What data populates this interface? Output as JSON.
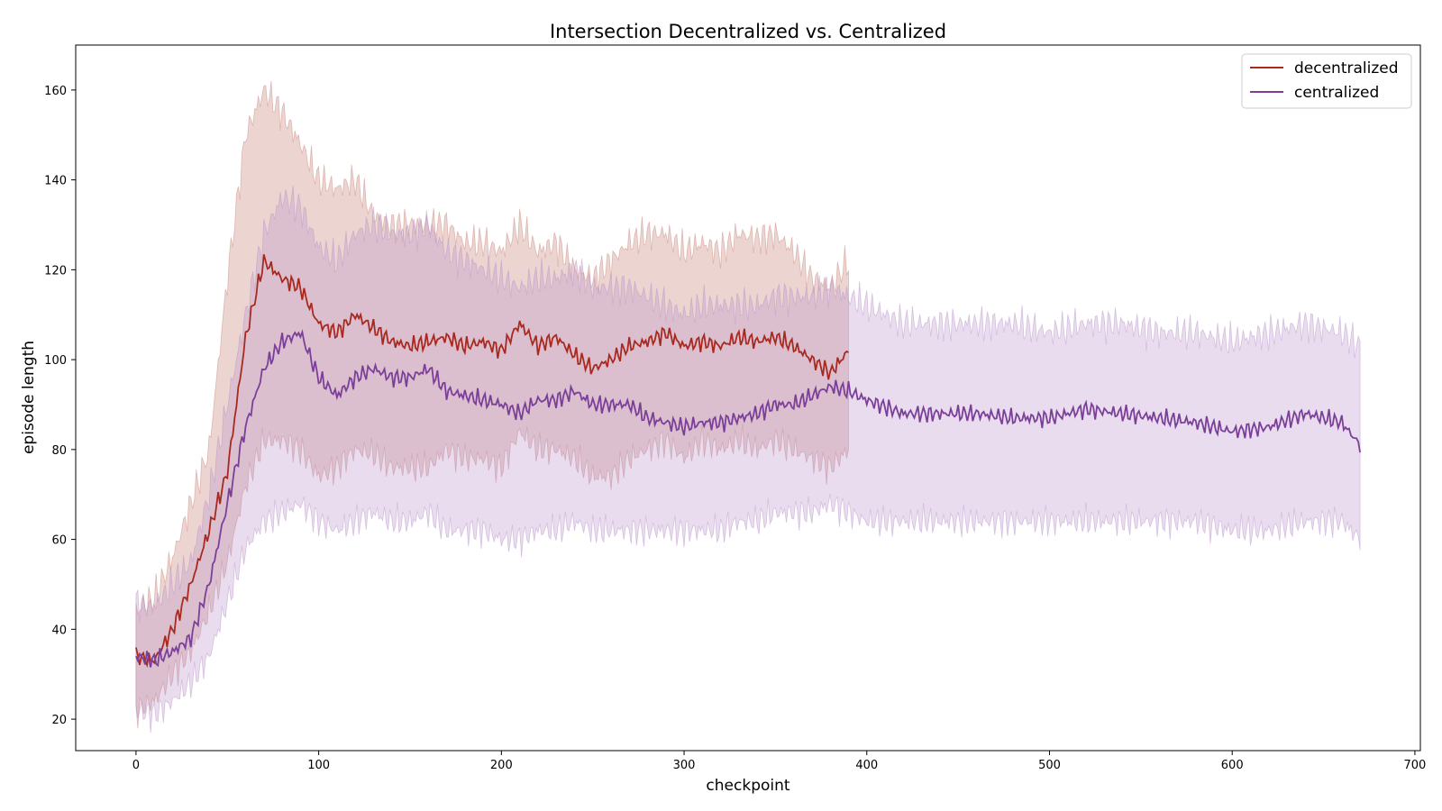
{
  "chart_data": {
    "type": "line",
    "title": "Intersection Decentralized vs. Centralized",
    "xlabel": "checkpoint",
    "ylabel": "episode length",
    "xlim": [
      -33,
      703
    ],
    "ylim": [
      13,
      170
    ],
    "xticks": [
      0,
      100,
      200,
      300,
      400,
      500,
      600,
      700
    ],
    "yticks": [
      20,
      40,
      60,
      80,
      100,
      120,
      140,
      160
    ],
    "grid": false,
    "legend_position": "top-right",
    "series": [
      {
        "name": "decentralized",
        "color": "#a8291f",
        "band_color": "#c9857b",
        "band_opacity": 0.35,
        "x": [
          0,
          10,
          20,
          30,
          40,
          50,
          60,
          70,
          80,
          90,
          100,
          110,
          120,
          130,
          140,
          150,
          160,
          170,
          180,
          190,
          200,
          210,
          220,
          230,
          240,
          250,
          260,
          270,
          280,
          290,
          300,
          310,
          320,
          330,
          340,
          350,
          360,
          370,
          380,
          390
        ],
        "mean": [
          34,
          33,
          40,
          50,
          62,
          75,
          105,
          122,
          118,
          116,
          108,
          106,
          110,
          107,
          104,
          103,
          104,
          105,
          103,
          104,
          102,
          108,
          103,
          105,
          101,
          98,
          100,
          103,
          104,
          106,
          103,
          104,
          103,
          105,
          104,
          105,
          103,
          100,
          97,
          102
        ],
        "upper": [
          44,
          47,
          56,
          68,
          80,
          118,
          150,
          160,
          155,
          148,
          140,
          138,
          140,
          132,
          130,
          130,
          130,
          130,
          126,
          126,
          124,
          130,
          124,
          126,
          120,
          118,
          122,
          126,
          128,
          128,
          124,
          126,
          124,
          128,
          127,
          128,
          124,
          118,
          116,
          122
        ],
        "lower": [
          22,
          24,
          30,
          35,
          44,
          55,
          72,
          82,
          82,
          80,
          74,
          76,
          80,
          79,
          76,
          76,
          76,
          80,
          78,
          78,
          76,
          84,
          80,
          80,
          78,
          74,
          74,
          78,
          80,
          82,
          78,
          82,
          80,
          82,
          80,
          82,
          80,
          78,
          76,
          80
        ]
      },
      {
        "name": "centralized",
        "color": "#7b3f99",
        "band_color": "#b993c9",
        "band_opacity": 0.32,
        "x": [
          0,
          10,
          20,
          30,
          40,
          50,
          60,
          70,
          80,
          90,
          100,
          110,
          120,
          130,
          140,
          150,
          160,
          170,
          180,
          190,
          200,
          210,
          220,
          230,
          240,
          250,
          260,
          270,
          280,
          290,
          300,
          310,
          320,
          330,
          340,
          350,
          360,
          370,
          380,
          390,
          400,
          420,
          440,
          460,
          480,
          500,
          520,
          540,
          560,
          580,
          600,
          620,
          640,
          660,
          670
        ],
        "mean": [
          34,
          33,
          35,
          38,
          50,
          68,
          85,
          98,
          104,
          106,
          96,
          92,
          96,
          98,
          96,
          96,
          98,
          93,
          92,
          91,
          90,
          88,
          91,
          91,
          93,
          90,
          90,
          90,
          87,
          86,
          85,
          86,
          86,
          87,
          88,
          90,
          90,
          92,
          94,
          93,
          91,
          88,
          88,
          88,
          87,
          87,
          89,
          88,
          87,
          86,
          84,
          85,
          88,
          86,
          81
        ],
        "upper": [
          46,
          45,
          50,
          55,
          70,
          90,
          110,
          128,
          136,
          134,
          125,
          122,
          128,
          130,
          128,
          128,
          130,
          124,
          122,
          120,
          118,
          116,
          118,
          118,
          120,
          116,
          116,
          116,
          114,
          112,
          110,
          112,
          112,
          112,
          112,
          114,
          114,
          114,
          116,
          114,
          112,
          108,
          108,
          108,
          108,
          106,
          108,
          108,
          106,
          106,
          104,
          106,
          108,
          106,
          103
        ],
        "lower": [
          22,
          21,
          24,
          28,
          34,
          46,
          58,
          64,
          66,
          68,
          64,
          62,
          64,
          66,
          64,
          64,
          66,
          62,
          62,
          62,
          60,
          60,
          62,
          62,
          64,
          62,
          62,
          62,
          62,
          62,
          62,
          62,
          62,
          64,
          64,
          66,
          66,
          66,
          68,
          66,
          64,
          64,
          64,
          64,
          64,
          64,
          64,
          64,
          64,
          64,
          62,
          62,
          64,
          64,
          60
        ]
      }
    ]
  }
}
